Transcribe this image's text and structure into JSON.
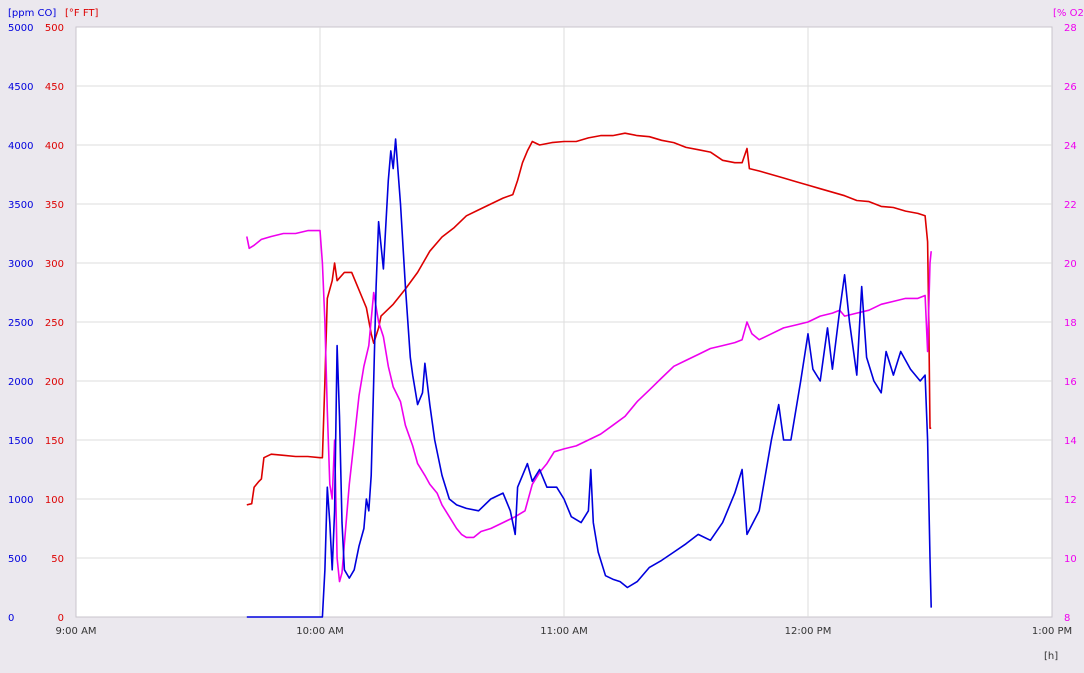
{
  "chart_data": {
    "type": "line",
    "x_unit_label": "[h]",
    "x_axis": {
      "ticks": [
        "9:00 AM",
        "10:00 AM",
        "11:00 AM",
        "12:00 PM",
        "1:00 PM"
      ],
      "range_hours": [
        9,
        13
      ]
    },
    "axes": {
      "co": {
        "label": "[ppm CO]",
        "color": "#0000dd",
        "range": [
          0,
          5000
        ],
        "ticks": [
          0,
          500,
          1000,
          1500,
          2000,
          2500,
          3000,
          3500,
          4000,
          4500,
          5000
        ]
      },
      "temp": {
        "label": "[°F FT]",
        "color": "#dd0000",
        "range": [
          0,
          500
        ],
        "ticks": [
          0,
          50,
          100,
          150,
          200,
          250,
          300,
          350,
          400,
          450,
          500
        ]
      },
      "o2": {
        "label": "[% O2",
        "color": "#ee00ee",
        "range": [
          8,
          28
        ],
        "ticks": [
          8,
          10,
          12,
          14,
          16,
          18,
          20,
          22,
          24,
          26,
          28
        ]
      }
    },
    "grid": true,
    "series": [
      {
        "axis": "temp",
        "color": "#dd0000",
        "points": [
          [
            9.7,
            95
          ],
          [
            9.72,
            96
          ],
          [
            9.73,
            110
          ],
          [
            9.75,
            115
          ],
          [
            9.76,
            117
          ],
          [
            9.77,
            135
          ],
          [
            9.8,
            138
          ],
          [
            9.85,
            137
          ],
          [
            9.9,
            136
          ],
          [
            9.95,
            136
          ],
          [
            10.0,
            135
          ],
          [
            10.01,
            135
          ],
          [
            10.02,
            200
          ],
          [
            10.03,
            270
          ],
          [
            10.05,
            285
          ],
          [
            10.06,
            300
          ],
          [
            10.07,
            285
          ],
          [
            10.1,
            292
          ],
          [
            10.13,
            292
          ],
          [
            10.15,
            282
          ],
          [
            10.17,
            272
          ],
          [
            10.19,
            262
          ],
          [
            10.21,
            240
          ],
          [
            10.22,
            232
          ],
          [
            10.24,
            245
          ],
          [
            10.25,
            255
          ],
          [
            10.3,
            265
          ],
          [
            10.35,
            278
          ],
          [
            10.4,
            292
          ],
          [
            10.45,
            310
          ],
          [
            10.5,
            322
          ],
          [
            10.55,
            330
          ],
          [
            10.6,
            340
          ],
          [
            10.65,
            345
          ],
          [
            10.7,
            350
          ],
          [
            10.75,
            355
          ],
          [
            10.79,
            358
          ],
          [
            10.81,
            370
          ],
          [
            10.83,
            385
          ],
          [
            10.85,
            395
          ],
          [
            10.87,
            403
          ],
          [
            10.9,
            400
          ],
          [
            10.95,
            402
          ],
          [
            11.0,
            403
          ],
          [
            11.05,
            403
          ],
          [
            11.1,
            406
          ],
          [
            11.15,
            408
          ],
          [
            11.2,
            408
          ],
          [
            11.25,
            410
          ],
          [
            11.3,
            408
          ],
          [
            11.35,
            407
          ],
          [
            11.4,
            404
          ],
          [
            11.45,
            402
          ],
          [
            11.5,
            398
          ],
          [
            11.55,
            396
          ],
          [
            11.6,
            394
          ],
          [
            11.65,
            387
          ],
          [
            11.7,
            385
          ],
          [
            11.73,
            385
          ],
          [
            11.75,
            397
          ],
          [
            11.76,
            380
          ],
          [
            11.8,
            378
          ],
          [
            11.85,
            375
          ],
          [
            11.9,
            372
          ],
          [
            11.95,
            369
          ],
          [
            12.0,
            366
          ],
          [
            12.05,
            363
          ],
          [
            12.1,
            360
          ],
          [
            12.15,
            357
          ],
          [
            12.2,
            353
          ],
          [
            12.25,
            352
          ],
          [
            12.3,
            348
          ],
          [
            12.35,
            347
          ],
          [
            12.4,
            344
          ],
          [
            12.45,
            342
          ],
          [
            12.48,
            340
          ],
          [
            12.49,
            318
          ],
          [
            12.495,
            250
          ],
          [
            12.5,
            160
          ],
          [
            12.505,
            160
          ]
        ]
      },
      {
        "axis": "o2",
        "color": "#ee00ee",
        "points": [
          [
            9.7,
            20.9
          ],
          [
            9.71,
            20.5
          ],
          [
            9.73,
            20.6
          ],
          [
            9.76,
            20.8
          ],
          [
            9.8,
            20.9
          ],
          [
            9.85,
            21.0
          ],
          [
            9.9,
            21.0
          ],
          [
            9.95,
            21.1
          ],
          [
            10.0,
            21.1
          ],
          [
            10.01,
            20.0
          ],
          [
            10.02,
            18.0
          ],
          [
            10.03,
            15.0
          ],
          [
            10.04,
            12.5
          ],
          [
            10.05,
            12.0
          ],
          [
            10.06,
            14.0
          ],
          [
            10.07,
            10.0
          ],
          [
            10.08,
            9.2
          ],
          [
            10.09,
            9.5
          ],
          [
            10.1,
            10.5
          ],
          [
            10.12,
            12.5
          ],
          [
            10.14,
            14.0
          ],
          [
            10.16,
            15.5
          ],
          [
            10.18,
            16.5
          ],
          [
            10.2,
            17.2
          ],
          [
            10.22,
            19.0
          ],
          [
            10.24,
            18.0
          ],
          [
            10.26,
            17.5
          ],
          [
            10.28,
            16.5
          ],
          [
            10.3,
            15.8
          ],
          [
            10.33,
            15.3
          ],
          [
            10.35,
            14.5
          ],
          [
            10.38,
            13.8
          ],
          [
            10.4,
            13.2
          ],
          [
            10.43,
            12.8
          ],
          [
            10.45,
            12.5
          ],
          [
            10.48,
            12.2
          ],
          [
            10.5,
            11.8
          ],
          [
            10.53,
            11.4
          ],
          [
            10.56,
            11.0
          ],
          [
            10.58,
            10.8
          ],
          [
            10.6,
            10.7
          ],
          [
            10.63,
            10.7
          ],
          [
            10.66,
            10.9
          ],
          [
            10.7,
            11.0
          ],
          [
            10.75,
            11.2
          ],
          [
            10.8,
            11.4
          ],
          [
            10.84,
            11.6
          ],
          [
            10.87,
            12.5
          ],
          [
            10.9,
            12.9
          ],
          [
            10.93,
            13.2
          ],
          [
            10.96,
            13.6
          ],
          [
            11.0,
            13.7
          ],
          [
            11.05,
            13.8
          ],
          [
            11.1,
            14.0
          ],
          [
            11.15,
            14.2
          ],
          [
            11.2,
            14.5
          ],
          [
            11.25,
            14.8
          ],
          [
            11.3,
            15.3
          ],
          [
            11.35,
            15.7
          ],
          [
            11.4,
            16.1
          ],
          [
            11.45,
            16.5
          ],
          [
            11.5,
            16.7
          ],
          [
            11.55,
            16.9
          ],
          [
            11.6,
            17.1
          ],
          [
            11.65,
            17.2
          ],
          [
            11.7,
            17.3
          ],
          [
            11.73,
            17.4
          ],
          [
            11.75,
            18.0
          ],
          [
            11.77,
            17.6
          ],
          [
            11.8,
            17.4
          ],
          [
            11.85,
            17.6
          ],
          [
            11.9,
            17.8
          ],
          [
            11.95,
            17.9
          ],
          [
            12.0,
            18.0
          ],
          [
            12.05,
            18.2
          ],
          [
            12.1,
            18.3
          ],
          [
            12.13,
            18.4
          ],
          [
            12.15,
            18.2
          ],
          [
            12.2,
            18.3
          ],
          [
            12.25,
            18.4
          ],
          [
            12.3,
            18.6
          ],
          [
            12.35,
            18.7
          ],
          [
            12.4,
            18.8
          ],
          [
            12.45,
            18.8
          ],
          [
            12.48,
            18.9
          ],
          [
            12.49,
            17.0
          ],
          [
            12.5,
            20.0
          ],
          [
            12.505,
            20.4
          ]
        ]
      },
      {
        "axis": "co",
        "color": "#0000dd",
        "points": [
          [
            9.7,
            0
          ],
          [
            9.8,
            0
          ],
          [
            9.9,
            0
          ],
          [
            10.0,
            0
          ],
          [
            10.01,
            0
          ],
          [
            10.02,
            400
          ],
          [
            10.03,
            1100
          ],
          [
            10.04,
            800
          ],
          [
            10.05,
            400
          ],
          [
            10.06,
            900
          ],
          [
            10.07,
            2300
          ],
          [
            10.08,
            1700
          ],
          [
            10.09,
            800
          ],
          [
            10.1,
            400
          ],
          [
            10.12,
            330
          ],
          [
            10.14,
            400
          ],
          [
            10.16,
            600
          ],
          [
            10.18,
            750
          ],
          [
            10.19,
            1000
          ],
          [
            10.2,
            900
          ],
          [
            10.21,
            1200
          ],
          [
            10.22,
            2000
          ],
          [
            10.23,
            2800
          ],
          [
            10.24,
            3350
          ],
          [
            10.26,
            2950
          ],
          [
            10.28,
            3700
          ],
          [
            10.29,
            3950
          ],
          [
            10.3,
            3800
          ],
          [
            10.31,
            4050
          ],
          [
            10.33,
            3500
          ],
          [
            10.35,
            2800
          ],
          [
            10.37,
            2200
          ],
          [
            10.38,
            2050
          ],
          [
            10.4,
            1800
          ],
          [
            10.42,
            1900
          ],
          [
            10.43,
            2150
          ],
          [
            10.45,
            1800
          ],
          [
            10.47,
            1500
          ],
          [
            10.5,
            1200
          ],
          [
            10.53,
            1000
          ],
          [
            10.56,
            950
          ],
          [
            10.6,
            920
          ],
          [
            10.65,
            900
          ],
          [
            10.7,
            1000
          ],
          [
            10.75,
            1050
          ],
          [
            10.78,
            900
          ],
          [
            10.8,
            700
          ],
          [
            10.81,
            1100
          ],
          [
            10.83,
            1200
          ],
          [
            10.85,
            1300
          ],
          [
            10.87,
            1150
          ],
          [
            10.9,
            1250
          ],
          [
            10.93,
            1100
          ],
          [
            10.97,
            1100
          ],
          [
            11.0,
            1000
          ],
          [
            11.03,
            850
          ],
          [
            11.07,
            800
          ],
          [
            11.1,
            900
          ],
          [
            11.11,
            1250
          ],
          [
            11.12,
            800
          ],
          [
            11.14,
            550
          ],
          [
            11.17,
            350
          ],
          [
            11.2,
            320
          ],
          [
            11.23,
            300
          ],
          [
            11.26,
            250
          ],
          [
            11.3,
            300
          ],
          [
            11.35,
            420
          ],
          [
            11.4,
            480
          ],
          [
            11.45,
            550
          ],
          [
            11.5,
            620
          ],
          [
            11.55,
            700
          ],
          [
            11.6,
            650
          ],
          [
            11.65,
            800
          ],
          [
            11.7,
            1050
          ],
          [
            11.73,
            1250
          ],
          [
            11.75,
            700
          ],
          [
            11.8,
            900
          ],
          [
            11.85,
            1500
          ],
          [
            11.88,
            1800
          ],
          [
            11.9,
            1500
          ],
          [
            11.93,
            1500
          ],
          [
            11.97,
            2000
          ],
          [
            12.0,
            2400
          ],
          [
            12.02,
            2100
          ],
          [
            12.05,
            2000
          ],
          [
            12.08,
            2450
          ],
          [
            12.1,
            2100
          ],
          [
            12.13,
            2600
          ],
          [
            12.15,
            2900
          ],
          [
            12.17,
            2500
          ],
          [
            12.2,
            2050
          ],
          [
            12.22,
            2800
          ],
          [
            12.24,
            2200
          ],
          [
            12.27,
            2000
          ],
          [
            12.3,
            1900
          ],
          [
            12.32,
            2250
          ],
          [
            12.35,
            2050
          ],
          [
            12.38,
            2250
          ],
          [
            12.42,
            2100
          ],
          [
            12.46,
            2000
          ],
          [
            12.48,
            2050
          ],
          [
            12.49,
            1500
          ],
          [
            12.5,
            500
          ],
          [
            12.505,
            80
          ]
        ]
      }
    ]
  }
}
